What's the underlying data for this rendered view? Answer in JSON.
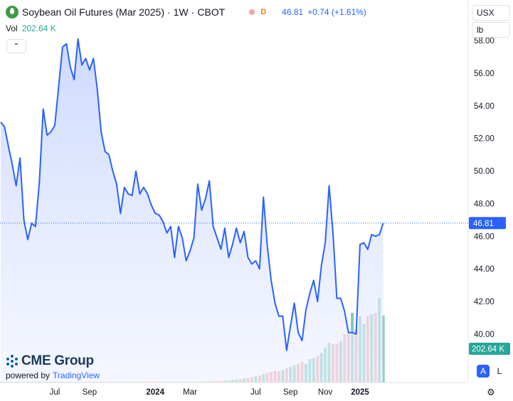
{
  "header": {
    "title": "Soybean Oil Futures (Mar 2025)",
    "interval": "1W",
    "exchange": "CBOT",
    "separator": "·",
    "data_badge": "D",
    "last_price": "46.81",
    "change": "+0.74 (+1.61%)"
  },
  "volume": {
    "label": "Vol",
    "value": "202.64 K"
  },
  "selectors": {
    "currency": "USX",
    "unit": "lb"
  },
  "branding": {
    "logo": "CME Group",
    "powered_by": "powered by",
    "platform": "TradingView"
  },
  "scale_buttons": {
    "auto": "A",
    "log": "L"
  },
  "icons": {
    "symbol": "soybean-oil-drop-icon",
    "collapse": "chevron-up-icon",
    "settings": "gear-icon"
  },
  "colors": {
    "line": "#2962ff",
    "area": "#dbe4ff",
    "volume_up": "#80c7bc",
    "volume_down": "#f2a5a5",
    "volume_last": "#26a69a"
  },
  "chart_data": {
    "type": "area",
    "title": "Soybean Oil Futures (Mar 2025)",
    "ylim": [
      38.0,
      58.5
    ],
    "y_ticks": [
      "58.00",
      "56.00",
      "54.00",
      "52.00",
      "50.00",
      "48.00",
      "46.00",
      "44.00",
      "42.00",
      "40.00"
    ],
    "x_ticks": [
      {
        "label": "Jul",
        "week": 14
      },
      {
        "label": "Sep",
        "week": 23
      },
      {
        "label": "2024",
        "week": 40
      },
      {
        "label": "Mar",
        "week": 49
      },
      {
        "label": "Jul",
        "week": 66
      },
      {
        "label": "Sep",
        "week": 75
      },
      {
        "label": "Nov",
        "week": 84
      },
      {
        "label": "2025",
        "week": 93
      }
    ],
    "last_value_label": "46.81",
    "last_volume_label": "202.64 K",
    "series": [
      {
        "values": [
          53.0,
          52.7,
          51.5,
          50.4,
          49.1,
          50.8,
          47.0,
          45.8,
          46.8,
          46.6,
          49.3,
          53.8,
          52.2,
          52.4,
          52.8,
          55.2,
          57.6,
          57.8,
          56.4,
          55.6,
          58.1,
          56.5,
          56.9,
          56.2,
          56.9,
          55.0,
          52.4,
          51.2,
          51.0,
          50.0,
          49.2,
          47.4,
          49.0,
          48.6,
          48.5,
          50.0,
          48.6,
          49.0,
          48.6,
          47.9,
          47.4,
          47.3,
          46.9,
          46.2,
          46.6,
          44.7,
          46.6,
          45.9,
          44.5,
          45.1,
          45.9,
          49.2,
          47.6,
          48.3,
          49.4,
          46.6,
          45.9,
          45.2,
          46.5,
          44.7,
          45.5,
          46.5,
          45.6,
          46.3,
          44.7,
          44.3,
          44.5,
          44.0,
          48.4,
          45.4,
          43.3,
          41.9,
          41.1,
          41.1,
          39.0,
          40.5,
          41.9,
          40.1,
          39.6,
          41.5,
          42.5,
          43.3,
          42.0,
          44.2,
          45.6,
          49.1,
          46.2,
          42.2,
          42.2,
          41.4,
          40.1,
          40.1,
          40.0,
          45.5,
          45.6,
          45.2,
          46.1,
          46.0,
          46.1,
          46.81
        ]
      }
    ],
    "volume_k": [
      1,
      1,
      1,
      1,
      1,
      1,
      1,
      1,
      1,
      1,
      1,
      1,
      1,
      1,
      1,
      1,
      1,
      1,
      1,
      1,
      1,
      1,
      1,
      1,
      1,
      1,
      1,
      1,
      1,
      1,
      1,
      1,
      1,
      1,
      1,
      1,
      1,
      1,
      1,
      1,
      1,
      1,
      1,
      1,
      1,
      1,
      1,
      1,
      1,
      2,
      2,
      2,
      3,
      3,
      3,
      4,
      5,
      5,
      6,
      7,
      8,
      9,
      10,
      12,
      14,
      16,
      19,
      21,
      25,
      28,
      32,
      36,
      34,
      38,
      43,
      47,
      52,
      56,
      62,
      56,
      70,
      74,
      80,
      90,
      105,
      120,
      116,
      118,
      125,
      145,
      150,
      210,
      160,
      200,
      176,
      200,
      206,
      210,
      255,
      202.64
    ]
  }
}
